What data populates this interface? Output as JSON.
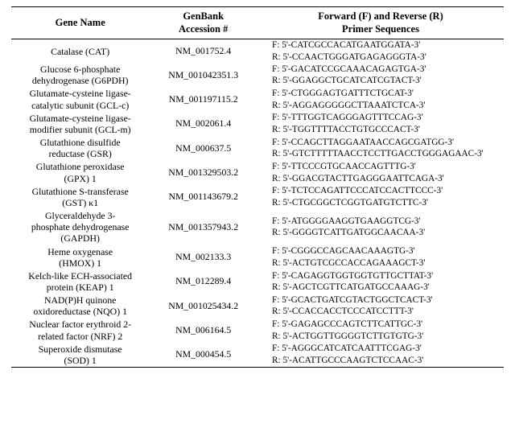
{
  "headers": {
    "gene": "Gene Name",
    "accession_line1": "GenBank",
    "accession_line2": "Accession #",
    "primer_line1": "Forward (F) and Reverse (R)",
    "primer_line2": "Primer Sequences"
  },
  "rows": [
    {
      "gene_lines": [
        "Catalase (CAT)"
      ],
      "accession": "NM_001752.4",
      "primers": [
        "F: 5'-CATCGCCACATGAATGGATA-3'",
        "R: 5'-CCAACTGGGATGAGAGGGTA-3'"
      ]
    },
    {
      "gene_lines": [
        "Glucose 6-phosphate",
        "dehydrogenase (G6PDH)"
      ],
      "accession": "NM_001042351.3",
      "primers": [
        "F: 5'-GACATCCGCAAACAGAGTGA-3'",
        "R: 5'-GGAGGCTGCATCATCGTACT-3'"
      ]
    },
    {
      "gene_lines": [
        "Glutamate-cysteine ligase-",
        "catalytic subunit (GCL-c)"
      ],
      "accession": "NM_001197115.2",
      "primers": [
        "F: 5'-CTGGGAGTGATTTCTGCAT-3'",
        "R: 5'-AGGAGGGGGCTTAAATCTCA-3'"
      ]
    },
    {
      "gene_lines": [
        "Glutamate-cysteine ligase-",
        "modifier subunit (GCL-m)"
      ],
      "accession": "NM_002061.4",
      "primers": [
        "F: 5'-TTTGGTCAGGGAGTTTCCAG-3'",
        "R: 5'-TGGTTTTACCTGTGCCCACT-3'"
      ]
    },
    {
      "gene_lines": [
        "Glutathione disulfide",
        "reductase (GSR)"
      ],
      "accession": "NM_000637.5",
      "primers": [
        "F: 5'-CCAGCTTAGGAATAACCAGCGATGG-3'",
        "R: 5'-GTCTTTTTAACCTCCTTGACCTGGGAGAAC-3'"
      ]
    },
    {
      "gene_lines": [
        "Glutathione peroxidase",
        "(GPX) 1"
      ],
      "accession": "NM_001329503.2",
      "primers": [
        "F: 5'-TTCCCGTGCAACCAGTTTG-3'",
        "R: 5'-GGACGTACTTGAGGGAATTCAGA-3'"
      ]
    },
    {
      "gene_lines": [
        "Glutathione S-transferase",
        "(GST) κ1"
      ],
      "accession": "NM_001143679.2",
      "primers": [
        "F: 5'-TCTCCAGATTCCCATCCACTTCCC-3'",
        "R: 5'-CTGCGGCTCGGTGATGTCTTC-3'"
      ]
    },
    {
      "gene_lines": [
        "Glyceraldehyde 3-",
        "phosphate dehydrogenase",
        "(GAPDH)"
      ],
      "accession": "NM_001357943.2",
      "primers": [
        "F: 5'-ATGGGGAAGGTGAAGGTCG-3'",
        "R: 5'-GGGGTCATTGATGGCAACAA-3'"
      ]
    },
    {
      "gene_lines": [
        "Heme oxygenase",
        "(HMOX) 1"
      ],
      "accession": "NM_002133.3",
      "primers": [
        "F: 5'-CGGGCCAGCAACAAAGTG-3'",
        "R: 5'-ACTGTCGCCACCAGAAAGCT-3'"
      ]
    },
    {
      "gene_lines": [
        "Kelch-like ECH-associated",
        "protein (KEAP) 1"
      ],
      "accession": "NM_012289.4",
      "primers": [
        "F: 5'-CAGAGGTGGTGGTGTTGCTTAT-3'",
        "R: 5'-AGCTCGTTCATGATGCCAAAG-3'"
      ]
    },
    {
      "gene_lines": [
        "NAD(P)H quinone",
        "oxidoreductase (NQO) 1"
      ],
      "accession": "NM_001025434.2",
      "primers": [
        "F: 5'-GCACTGATCGTACTGGCTCACT-3'",
        "R: 5'-CCACCACCTCCCATCCTTT-3'"
      ]
    },
    {
      "gene_lines": [
        "Nuclear factor erythroid 2-",
        "related factor (NRF) 2"
      ],
      "accession": "NM_006164.5",
      "primers": [
        "F: 5'-GAGAGCCCAGTCTTCATTGC-3'",
        "R: 5'-ACTGGTTGGGGTCTTGTGTG-3'"
      ]
    },
    {
      "gene_lines": [
        "Superoxide dismutase",
        "(SOD) 1"
      ],
      "accession": "NM_000454.5",
      "primers": [
        "F: 5'-AGGGCATCATCAATTTCGAG-3'",
        "R: 5'-ACATTGCCCAAGTCTCCAAC-3'"
      ]
    }
  ]
}
